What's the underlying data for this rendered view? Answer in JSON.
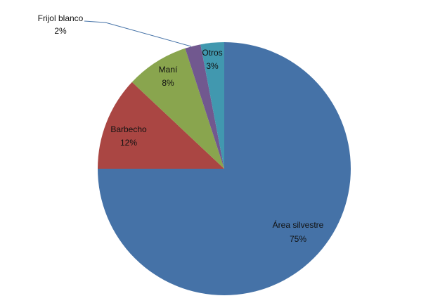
{
  "chart_data": {
    "type": "pie",
    "title": "",
    "start_angle_deg": 0,
    "direction": "clockwise",
    "slices": [
      {
        "name": "Área silvestre",
        "value": 75,
        "label": "75%",
        "color": "#4572A7"
      },
      {
        "name": "Barbecho",
        "value": 12,
        "label": "12%",
        "color": "#AA4643"
      },
      {
        "name": "Maní",
        "value": 8,
        "label": "8%",
        "color": "#89A54E"
      },
      {
        "name": "Frijol blanco",
        "value": 2,
        "label": "2%",
        "color": "#71588F"
      },
      {
        "name": "Otros",
        "value": 3,
        "label": "3%",
        "color": "#4198AF"
      }
    ],
    "leader_line_color": "#4572A7",
    "legend": "none"
  }
}
